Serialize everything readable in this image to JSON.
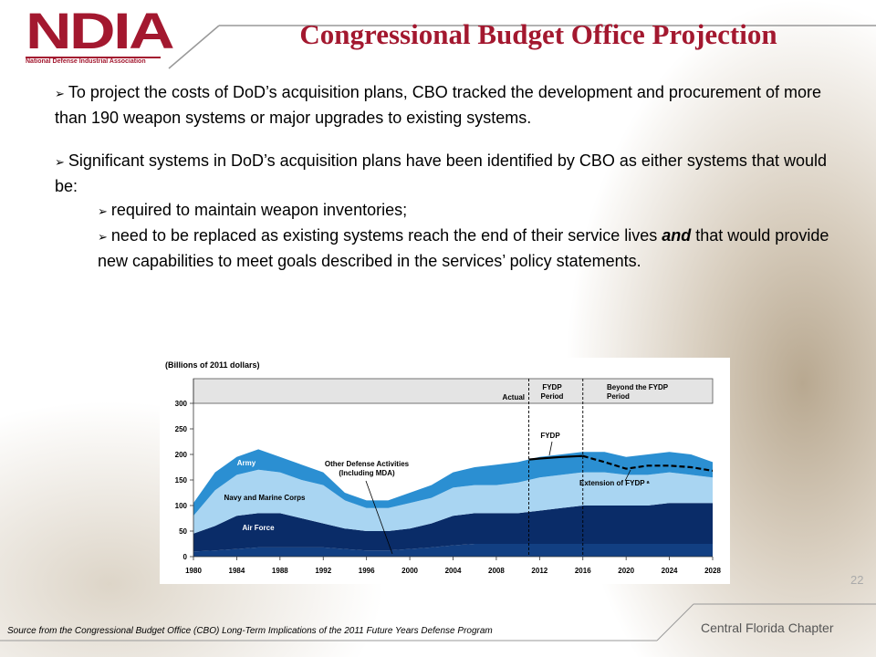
{
  "header": {
    "logo": "NDIA",
    "logo_subtitle": "National Defense Industrial Association",
    "title": "Congressional Budget Office Projection"
  },
  "bullets": [
    {
      "text": "To project the costs of DoD’s acquisition plans, CBO tracked the development and procurement of more than 190 weapon systems or major upgrades to existing systems."
    },
    {
      "text": "Significant systems in DoD’s acquisition plans have been identified by CBO as either systems that would be:",
      "sub_bullets": [
        {
          "parts": [
            "required to maintain weapon inventories;"
          ]
        },
        {
          "parts": [
            "need to be replaced as existing systems reach the end of their service lives ",
            "and",
            " that would provide new capabilities to meet goals described in the services’ policy statements."
          ]
        }
      ]
    }
  ],
  "chart_data": {
    "type": "stacked_area",
    "y_label": "(Billions of 2011 dollars)",
    "x": [
      1980,
      1982,
      1984,
      1986,
      1988,
      1990,
      1992,
      1994,
      1996,
      1998,
      2000,
      2002,
      2004,
      2006,
      2008,
      2010,
      2012,
      2014,
      2016,
      2018,
      2020,
      2022,
      2024,
      2026,
      2028
    ],
    "series": [
      {
        "name": "Other Defense Activities (Including MDA)",
        "color": "#123f82",
        "values": [
          10,
          12,
          15,
          18,
          18,
          18,
          18,
          15,
          12,
          12,
          15,
          18,
          22,
          25,
          25,
          25,
          25,
          25,
          25,
          25,
          25,
          25,
          25,
          25,
          25
        ]
      },
      {
        "name": "Air Force",
        "color": "#0a2c68",
        "values": [
          35,
          48,
          65,
          67,
          67,
          57,
          47,
          40,
          38,
          38,
          40,
          47,
          58,
          60,
          60,
          60,
          65,
          70,
          75,
          75,
          75,
          75,
          80,
          80,
          80
        ]
      },
      {
        "name": "Navy and Marine Corps",
        "color": "#a9d5f2",
        "values": [
          35,
          70,
          80,
          85,
          80,
          75,
          75,
          55,
          45,
          45,
          50,
          50,
          55,
          55,
          55,
          60,
          65,
          65,
          65,
          65,
          60,
          60,
          60,
          55,
          50
        ]
      },
      {
        "name": "Army",
        "color": "#2b8fd2",
        "values": [
          25,
          35,
          35,
          40,
          30,
          30,
          25,
          15,
          15,
          15,
          20,
          25,
          30,
          35,
          40,
          40,
          40,
          40,
          40,
          40,
          35,
          40,
          40,
          40,
          30
        ]
      }
    ],
    "lines": [
      {
        "name": "FYDP",
        "style": "solid",
        "x": [
          2011,
          2012,
          2014,
          2016
        ],
        "values": [
          190,
          192,
          195,
          197
        ]
      },
      {
        "name": "Extension of FYDP ᵃ",
        "style": "dashed",
        "x": [
          2016,
          2018,
          2020,
          2022,
          2024,
          2026,
          2028
        ],
        "values": [
          197,
          185,
          172,
          178,
          178,
          175,
          168
        ]
      }
    ],
    "periods": [
      {
        "label": "Actual"
      },
      {
        "label": "FYDP Period"
      },
      {
        "label": "Beyond the FYDP Period"
      }
    ],
    "period_boundaries": [
      2011,
      2016
    ],
    "xlim": [
      1980,
      2028
    ],
    "xticks": [
      1980,
      1984,
      1988,
      1992,
      1996,
      2000,
      2004,
      2008,
      2012,
      2016,
      2020,
      2024,
      2028
    ],
    "ylim": [
      0,
      300
    ],
    "yticks": [
      0,
      50,
      100,
      150,
      200,
      250,
      300
    ]
  },
  "footer": {
    "source": "Source from the Congressional Budget Office (CBO) Long-Term Implications of the 2011 Future Years Defense Program",
    "chapter": "Central Florida Chapter",
    "page": 22
  }
}
